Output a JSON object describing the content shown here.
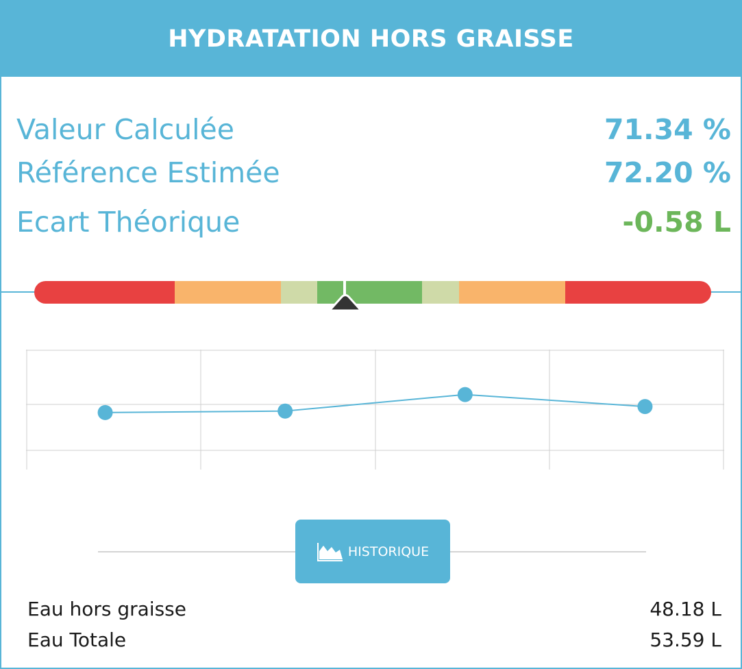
{
  "header": {
    "title": "HYDRATATION HORS GRAISSE"
  },
  "colors": {
    "accent": "#58b5d7",
    "positive": "#6cb65a",
    "red": "#e84141",
    "orange": "#f9b46b",
    "light_green": "#cfdaa8",
    "green": "#72b964",
    "pointer": "#333333"
  },
  "metrics": [
    {
      "label": "Valeur Calculée",
      "value": "71.34 %",
      "color": "#58b5d7"
    },
    {
      "label": "Référence Estimée",
      "value": "72.20 %",
      "color": "#58b5d7"
    },
    {
      "label": "Ecart Théorique",
      "value": "-0.58 L",
      "color": "#6cb65a"
    }
  ],
  "gauge": {
    "segments": [
      {
        "color": "#e84141",
        "weight": 205
      },
      {
        "color": "#f9b46b",
        "weight": 155
      },
      {
        "color": "#cfdaa8",
        "weight": 53
      },
      {
        "color": "#72b964",
        "weight": 153
      },
      {
        "color": "#cfdaa8",
        "weight": 54
      },
      {
        "color": "#f9b46b",
        "weight": 155
      },
      {
        "color": "#e84141",
        "weight": 213
      }
    ],
    "marker_position": 0.46
  },
  "chart_data": {
    "type": "line",
    "x": [
      1,
      2,
      3,
      4
    ],
    "series": [
      {
        "values": [
          70.9,
          70.95,
          71.5,
          71.1
        ]
      }
    ],
    "ylim": [
      69,
      73
    ],
    "grid": true
  },
  "historique": {
    "label": "HISTORIQUE",
    "icon": "area-chart-icon"
  },
  "info": [
    {
      "label": "Eau hors graisse",
      "value": "48.18 L"
    },
    {
      "label": "Eau Totale",
      "value": "53.59 L"
    }
  ]
}
